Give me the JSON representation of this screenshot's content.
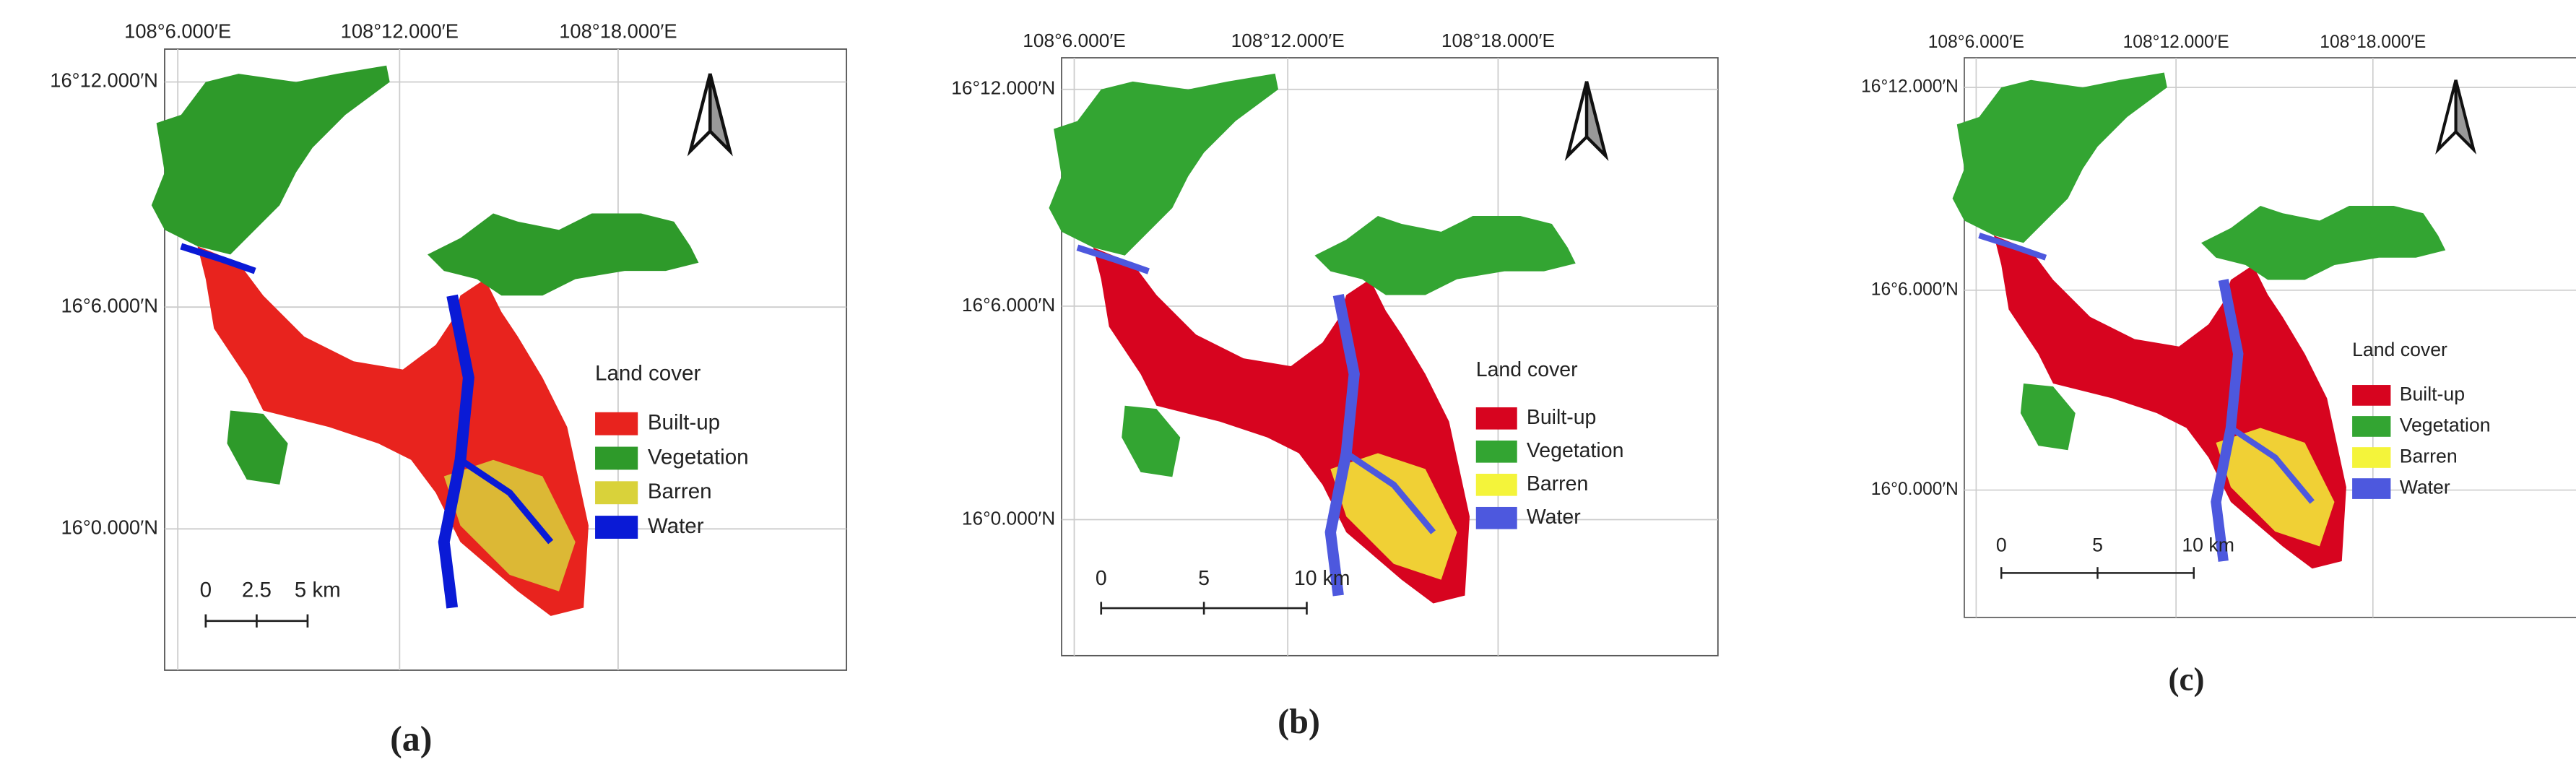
{
  "panels": [
    {
      "caption": "(a)",
      "lon_labels": [
        "108°6.000′E",
        "108°12.000′E",
        "108°18.000′E"
      ],
      "lat_labels": [
        "16°12.000′N",
        "16°6.000′N",
        "16°0.000′N"
      ],
      "legend": {
        "title": "Land cover",
        "items": [
          {
            "name": "Built-up",
            "color": "#e8231e"
          },
          {
            "name": "Vegetation",
            "color": "#2e9a2a"
          },
          {
            "name": "Barren",
            "color": "#d9d23a"
          },
          {
            "name": "Water",
            "color": "#0a1ad6"
          }
        ]
      },
      "scale_labels": [
        "0",
        "2.5",
        "5 km"
      ]
    },
    {
      "caption": "(b)",
      "lon_labels": [
        "108°6.000′E",
        "108°12.000′E",
        "108°18.000′E"
      ],
      "lat_labels": [
        "16°12.000′N",
        "16°6.000′N",
        "16°0.000′N"
      ],
      "legend": {
        "title": "Land cover",
        "items": [
          {
            "name": "Built-up",
            "color": "#d7041f"
          },
          {
            "name": "Vegetation",
            "color": "#33a532"
          },
          {
            "name": "Barren",
            "color": "#f4f43a"
          },
          {
            "name": "Water",
            "color": "#4d58de"
          }
        ]
      },
      "scale_labels": [
        "0",
        "5",
        "10 km"
      ]
    },
    {
      "caption": "(c)",
      "lon_labels": [
        "108°6.000′E",
        "108°12.000′E",
        "108°18.000′E"
      ],
      "lat_labels": [
        "16°12.000′N",
        "16°6.000′N",
        "16°0.000′N"
      ],
      "legend": {
        "title": "Land cover",
        "items": [
          {
            "name": "Built-up",
            "color": "#d7041f"
          },
          {
            "name": "Vegetation",
            "color": "#33a532"
          },
          {
            "name": "Barren",
            "color": "#f4f43a"
          },
          {
            "name": "Water",
            "color": "#4d58de"
          }
        ]
      },
      "scale_labels": [
        "0",
        "5",
        "10 km"
      ]
    }
  ]
}
